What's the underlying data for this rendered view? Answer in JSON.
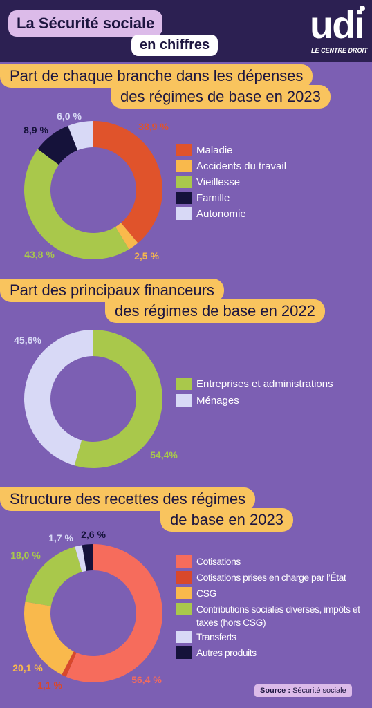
{
  "header": {
    "title": "La Sécurité sociale",
    "subtitle": "en chiffres",
    "logo": "udi",
    "logo_tagline": "LE CENTRE DROIT"
  },
  "chart_data": [
    {
      "type": "donut",
      "title": [
        "Part de chaque branche dans les dépenses",
        "des régimes de base en 2023"
      ],
      "categories": [
        "Maladie",
        "Accidents du travail",
        "Vieillesse",
        "Famille",
        "Autonomie"
      ],
      "values": [
        38.9,
        2.5,
        43.8,
        8.9,
        6.0
      ],
      "value_labels": [
        "38,9 %",
        "2,5 %",
        "43,8 %",
        "8,9 %",
        "6,0 %"
      ],
      "colors": [
        "#e0532b",
        "#f9b94c",
        "#a9c84b",
        "#15123a",
        "#d8d9f6"
      ]
    },
    {
      "type": "donut",
      "title": [
        "Part des principaux financeurs",
        "des régimes de base en 2022"
      ],
      "categories": [
        "Entreprises et administrations",
        "Ménages"
      ],
      "values": [
        54.4,
        45.6
      ],
      "value_labels": [
        "54,4%",
        "45,6%"
      ],
      "colors": [
        "#a9c84b",
        "#d8d9f6"
      ]
    },
    {
      "type": "donut",
      "title": [
        "Structure des recettes des régimes",
        "de base en 2023"
      ],
      "categories": [
        "Cotisations",
        "Cotisations prises en charge par l’État",
        "CSG",
        "Contributions sociales diverses, impôts et taxes (hors CSG)",
        "Transferts",
        "Autres produits"
      ],
      "values": [
        56.4,
        1.1,
        20.1,
        18.0,
        1.7,
        2.6
      ],
      "value_labels": [
        "56,4 %",
        "1,1 %",
        "20,1 %",
        "18,0 %",
        "1,7 %",
        "2,6 %"
      ],
      "colors": [
        "#f66c5c",
        "#d9482b",
        "#f9b94c",
        "#a9c84b",
        "#d8d9f6",
        "#15123a"
      ]
    }
  ],
  "source": {
    "label": "Source :",
    "text": "Sécurité sociale"
  }
}
